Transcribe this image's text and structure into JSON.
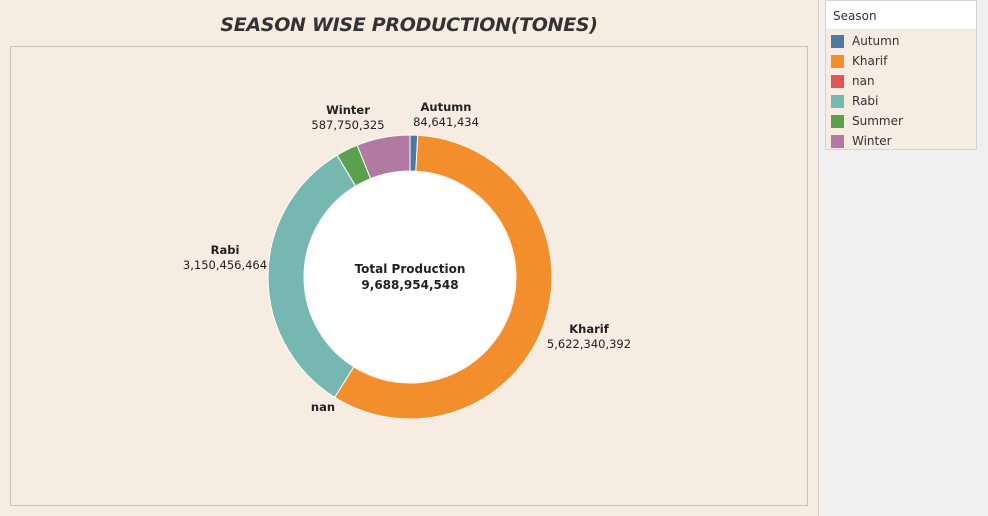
{
  "chart_data": {
    "type": "pie",
    "title": "SEASON WISE PRODUCTION(TONES)",
    "center_label": "Total Production",
    "center_value": "9,688,954,548",
    "legend_title": "Season",
    "legend_placement": "top-right",
    "slices": [
      {
        "name": "Autumn",
        "value": 84641434,
        "display": "84,641,434",
        "color": "#4e79a7"
      },
      {
        "name": "Kharif",
        "value": 5622340392,
        "display": "5,622,340,392",
        "color": "#f28e2b"
      },
      {
        "name": "nan",
        "value": 0,
        "display": "",
        "color": "#e15759"
      },
      {
        "name": "Rabi",
        "value": 3150456464,
        "display": "3,150,456,464",
        "color": "#76b7b2"
      },
      {
        "name": "Summer",
        "value": 243765933,
        "display": "",
        "color": "#59a14f"
      },
      {
        "name": "Winter",
        "value": 587750325,
        "display": "587,750,325",
        "color": "#b07aa1"
      }
    ]
  }
}
